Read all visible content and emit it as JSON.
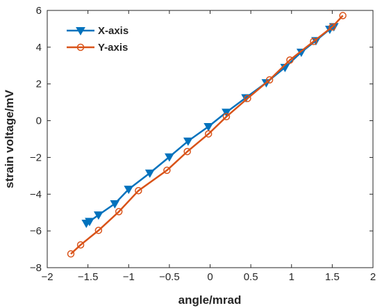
{
  "chart_data": {
    "type": "line",
    "title": "",
    "xlabel": "angle/mrad",
    "ylabel": "strain voltage/mV",
    "xlim": [
      -2,
      2
    ],
    "ylim": [
      -8,
      6
    ],
    "xticks": [
      -2,
      -1.5,
      -1,
      -0.5,
      0,
      0.5,
      1,
      1.5,
      2
    ],
    "yticks": [
      -8,
      -6,
      -4,
      -2,
      0,
      2,
      4,
      6
    ],
    "xtick_labels": [
      "−2",
      "−1.5",
      "−1",
      "−0.5",
      "0",
      "0.5",
      "1",
      "1.5",
      "2"
    ],
    "ytick_labels": [
      "−8",
      "−6",
      "−4",
      "−2",
      "0",
      "2",
      "4",
      "6"
    ],
    "grid": false,
    "legend_position": "top-left",
    "series": [
      {
        "name": "X-axis",
        "color": "#0072BD",
        "marker": "triangle-down",
        "x": [
          -1.52,
          -1.48,
          -1.37,
          -1.17,
          -1.0,
          -0.74,
          -0.5,
          -0.27,
          -0.02,
          0.2,
          0.44,
          0.69,
          0.92,
          1.12,
          1.3,
          1.47,
          1.52
        ],
        "y": [
          -5.58,
          -5.48,
          -5.13,
          -4.52,
          -3.73,
          -2.85,
          -1.97,
          -1.11,
          -0.32,
          0.46,
          1.25,
          2.07,
          2.9,
          3.73,
          4.36,
          4.98,
          5.12
        ]
      },
      {
        "name": "Y-axis",
        "color": "#D95319",
        "marker": "circle",
        "x": [
          -1.71,
          -1.59,
          -1.37,
          -1.12,
          -0.88,
          -0.53,
          -0.28,
          -0.02,
          0.2,
          0.46,
          0.73,
          0.98,
          1.27,
          1.5,
          1.63
        ],
        "y": [
          -7.25,
          -6.76,
          -5.97,
          -4.95,
          -3.81,
          -2.7,
          -1.68,
          -0.72,
          0.22,
          1.21,
          2.22,
          3.3,
          4.31,
          5.1,
          5.72
        ]
      }
    ]
  }
}
